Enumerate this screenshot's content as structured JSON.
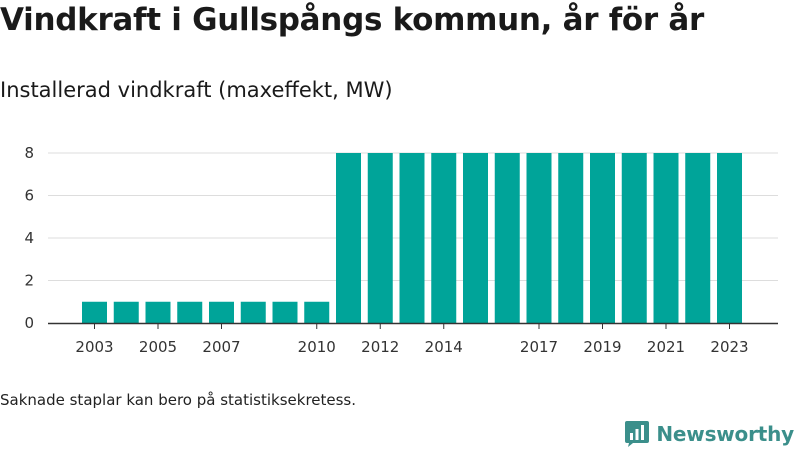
{
  "title": "Vindkraft i Gullspångs kommun, år för år",
  "subtitle": "Installerad vindkraft (maxeffekt, MW)",
  "footnote": "Saknade staplar kan bero på statistiksekretess.",
  "brand": {
    "name": "Newsworthy",
    "icon": "newsworthy-logo-icon"
  },
  "colors": {
    "bar": "#00a499",
    "grid": "#dddddd",
    "axis": "#333333",
    "brand": "#3b8f8b"
  },
  "chart_data": {
    "type": "bar",
    "categories": [
      "2003",
      "2004",
      "2005",
      "2006",
      "2007",
      "2008",
      "2009",
      "2010",
      "2011",
      "2012",
      "2013",
      "2014",
      "2015",
      "2016",
      "2017",
      "2018",
      "2019",
      "2020",
      "2021",
      "2022",
      "2023"
    ],
    "values": [
      1,
      1,
      1,
      1,
      1,
      1,
      1,
      1,
      8,
      8,
      8,
      8,
      8,
      8,
      8,
      8,
      8,
      8,
      8,
      8,
      8
    ],
    "xtick_labels": [
      "2003",
      "2005",
      "2007",
      "2010",
      "2012",
      "2014",
      "2017",
      "2019",
      "2021",
      "2023"
    ],
    "yticks": [
      0,
      2,
      4,
      6,
      8
    ],
    "ylim": [
      0,
      8
    ],
    "xlabel": "",
    "ylabel": "",
    "grid": true
  }
}
